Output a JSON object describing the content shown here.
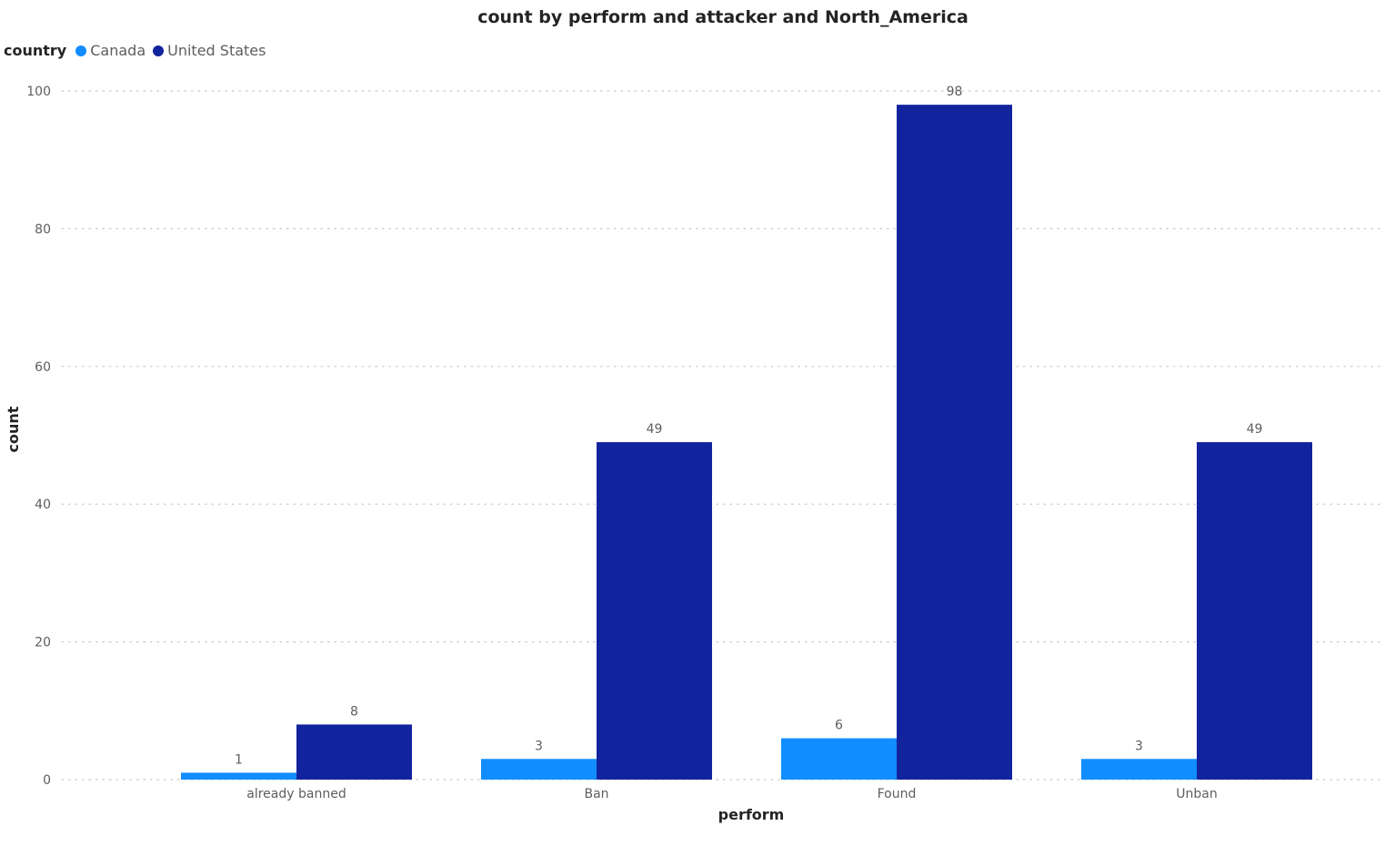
{
  "chart_data": {
    "type": "bar",
    "title": "count by perform and attacker and North_America",
    "xlabel": "perform",
    "ylabel": "count",
    "categories": [
      "already banned",
      "Ban",
      "Found",
      "Unban"
    ],
    "series": [
      {
        "name": "Canada",
        "color": "#118DFF",
        "values": [
          1,
          3,
          6,
          3
        ]
      },
      {
        "name": "United States",
        "color": "#12239E",
        "values": [
          8,
          49,
          98,
          49
        ]
      }
    ],
    "yticks": [
      0,
      20,
      40,
      60,
      80,
      100
    ],
    "ylim": [
      0,
      100
    ],
    "grid": true,
    "legend": {
      "title": "country",
      "placement": "top-left"
    }
  }
}
